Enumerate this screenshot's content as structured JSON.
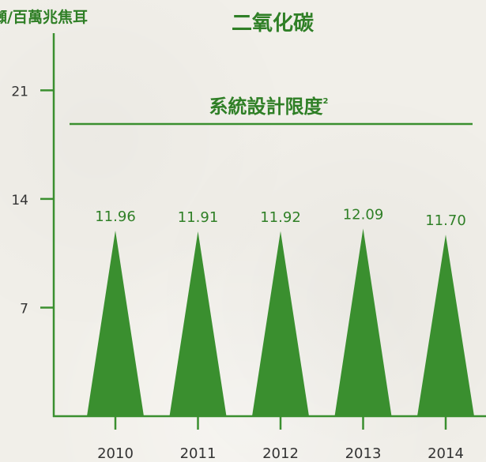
{
  "chart_data": {
    "type": "bar",
    "title": "二氧化碳",
    "ylabel": "噸/百萬兆焦耳",
    "xlabel": "",
    "categories": [
      "2010",
      "2011",
      "2012",
      "2013",
      "2014"
    ],
    "values": [
      11.96,
      11.91,
      11.92,
      12.09,
      11.7
    ],
    "value_labels": [
      "11.96",
      "11.91",
      "11.92",
      "12.09",
      "11.70"
    ],
    "y_ticks": [
      7,
      14,
      21
    ],
    "ylim": [
      0,
      29.5
    ],
    "reference_line": {
      "value": 19.2,
      "label": "系統設計限度",
      "superscript": "2"
    },
    "grid": false,
    "legend": "none",
    "mark_shape": "triangle",
    "colors": {
      "mark": "#3a8f2f",
      "axis": "#3a8f2f",
      "text": "#2f7f26",
      "tick_text": "#333333"
    }
  }
}
